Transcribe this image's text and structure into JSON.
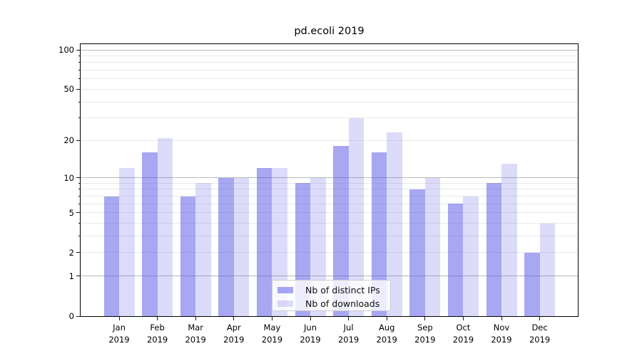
{
  "title": "pd.ecoli 2019",
  "chart_data": {
    "type": "bar",
    "title": "pd.ecoli 2019",
    "categories": [
      "Jan 2019",
      "Feb 2019",
      "Mar 2019",
      "Apr 2019",
      "May 2019",
      "Jun 2019",
      "Jul 2019",
      "Aug 2019",
      "Sep 2019",
      "Oct 2019",
      "Nov 2019",
      "Dec 2019"
    ],
    "x_tick_months": [
      "Jan",
      "Feb",
      "Mar",
      "Apr",
      "May",
      "Jun",
      "Jul",
      "Aug",
      "Sep",
      "Oct",
      "Nov",
      "Dec"
    ],
    "x_tick_year": "2019",
    "series": [
      {
        "name": "Nb of distinct IPs",
        "color": "rgba(80,80,230,0.5)",
        "values": [
          7,
          16,
          7,
          10,
          12,
          9,
          18,
          16,
          8,
          6,
          9,
          2
        ]
      },
      {
        "name": "Nb of downloads",
        "color": "rgba(80,80,230,0.2)",
        "values": [
          12,
          21,
          9,
          10,
          12,
          10,
          30,
          23,
          10,
          7,
          13,
          4
        ]
      }
    ],
    "yscale": "log1p",
    "ylim": [
      0,
      110
    ],
    "y_tick_labels": [
      100,
      50,
      20,
      10,
      5,
      2,
      1,
      0
    ],
    "y_major_gridlines": [
      1,
      10,
      100
    ],
    "y_minor_gridlines": [
      2,
      3,
      4,
      5,
      6,
      7,
      8,
      9,
      20,
      30,
      40,
      50,
      60,
      70,
      80,
      90
    ],
    "grid": true,
    "legend_position": "lower center"
  },
  "colors": {
    "major_grid": "#b9b9b9",
    "minor_grid": "#e9e9e9",
    "axis": "#000000",
    "bar_ips": "rgba(80,80,230,0.5)",
    "bar_downloads": "rgba(80,80,230,0.2)"
  }
}
